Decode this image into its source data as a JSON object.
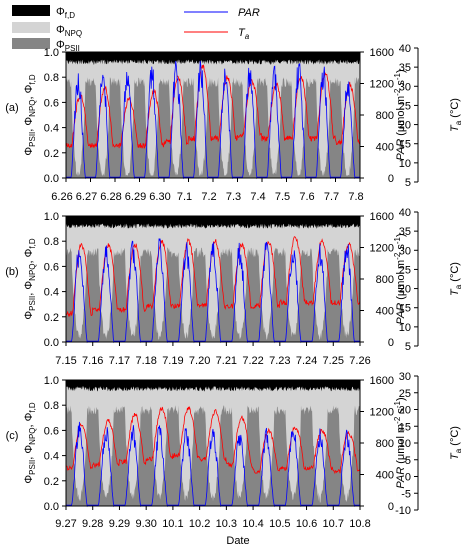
{
  "chart_data": [
    {
      "type": "area",
      "panel_label": "(a)",
      "x_dates": [
        "6.26",
        "6.27",
        "6.28",
        "6.29",
        "6.30",
        "7.1",
        "7.2",
        "7.3",
        "7.4",
        "7.5",
        "7.6",
        "7.7",
        "7.8"
      ],
      "ylim": [
        0,
        1.0
      ],
      "yticks": [
        "0.0",
        "0.2",
        "0.4",
        "0.6",
        "0.8",
        "1.0"
      ],
      "ylabel": "ΦPSII, ΦNPQ, Φf,D",
      "par_axis": {
        "label": "PAR (μmol m-2 s-1)",
        "range": [
          0,
          1600
        ],
        "ticks": [
          "0",
          "400",
          "800",
          "1200",
          "1600"
        ]
      },
      "ta_axis": {
        "label": "Ta (°C)",
        "range": [
          5,
          40
        ],
        "ticks": [
          "5",
          "10",
          "15",
          "20",
          "25",
          "30",
          "35",
          "40"
        ]
      },
      "phi_fD_mean": 0.08,
      "phi_PSII_day_min": 0.05,
      "phi_PSII_night_max": 0.8,
      "par_daily_peak": [
        1400,
        1500,
        1450,
        1500,
        1550,
        1550,
        1500,
        1500,
        1500,
        1550,
        1500,
        1350
      ],
      "ta_daily_max": [
        28,
        30,
        27,
        29,
        33,
        36,
        33,
        32,
        31,
        33,
        34,
        31
      ],
      "ta_daily_min": [
        14,
        14,
        14,
        14,
        15,
        16,
        16,
        17,
        16,
        16,
        16,
        15
      ]
    },
    {
      "type": "area",
      "panel_label": "(b)",
      "x_dates": [
        "7.15",
        "7.16",
        "7.17",
        "7.18",
        "7.19",
        "7.20",
        "7.21",
        "7.22",
        "7.23",
        "7.24",
        "7.25",
        "7.26"
      ],
      "ylim": [
        0,
        1.0
      ],
      "yticks": [
        "0.0",
        "0.2",
        "0.4",
        "0.6",
        "0.8",
        "1.0"
      ],
      "ylabel": "ΦPSII, ΦNPQ, Φf,D",
      "par_axis": {
        "label": "PAR (μmol m-2 s-1)",
        "range": [
          0,
          1600
        ],
        "ticks": [
          "0",
          "400",
          "800",
          "1200",
          "1600"
        ]
      },
      "ta_axis": {
        "label": "Ta (°C)",
        "range": [
          5,
          40
        ],
        "ticks": [
          "5",
          "10",
          "15",
          "20",
          "25",
          "30",
          "35",
          "40"
        ]
      },
      "phi_fD_mean": 0.08,
      "phi_PSII_day_min": 0.08,
      "phi_PSII_night_max": 0.75,
      "par_daily_peak": [
        1300,
        1300,
        1300,
        1350,
        1300,
        1350,
        1300,
        1350,
        1300,
        1300,
        1350
      ],
      "ta_daily_max": [
        32,
        32,
        32,
        33,
        33,
        33,
        32,
        33,
        34,
        33,
        32
      ],
      "ta_daily_min": [
        13,
        14,
        14,
        15,
        15,
        15,
        15,
        15,
        16,
        16,
        16
      ]
    },
    {
      "type": "area",
      "panel_label": "(c)",
      "x_dates": [
        "9.27",
        "9.28",
        "9.29",
        "9.30",
        "10.1",
        "10.2",
        "10.3",
        "10.4",
        "10.5",
        "10.6",
        "10.7",
        "10.8"
      ],
      "ylim": [
        0,
        1.0
      ],
      "yticks": [
        "0.0",
        "0.2",
        "0.4",
        "0.6",
        "0.8",
        "1.0"
      ],
      "ylabel": "ΦPSII, ΦNPQ, Φf,D",
      "par_axis": {
        "label": "PAR (μmol m-2 s-1)",
        "range": [
          0,
          1600
        ],
        "ticks": [
          "0",
          "400",
          "800",
          "1200",
          "1600"
        ]
      },
      "ta_axis": {
        "label": "Ta (°C)",
        "range": [
          -10,
          30
        ],
        "ticks": [
          "-10",
          "-5",
          "0",
          "5",
          "10",
          "15",
          "20",
          "25",
          "30"
        ]
      },
      "phi_fD_mean": 0.07,
      "phi_PSII_day_min": 0.1,
      "phi_PSII_night_max": 0.8,
      "par_daily_peak": [
        1100,
        1050,
        1050,
        1050,
        1050,
        1050,
        1000,
        1000,
        1050,
        1000,
        1000
      ],
      "ta_daily_max": [
        16,
        17,
        19,
        21,
        21,
        20,
        18,
        14,
        15,
        14,
        13
      ],
      "ta_daily_min": [
        2,
        3,
        4,
        5,
        6,
        5,
        3,
        1,
        2,
        2,
        1
      ]
    }
  ],
  "legend": {
    "phi_fD": "Φf,D",
    "phi_NPQ": "ΦNPQ",
    "phi_PSII": "ΦPSII",
    "par": "PAR",
    "ta": "Ta"
  },
  "xlabel": "Date",
  "colors": {
    "phi_fD": "#000000",
    "phi_NPQ": "#d4d4d4",
    "phi_PSII": "#858585",
    "par": "#0000ff",
    "ta": "#ff0000"
  }
}
